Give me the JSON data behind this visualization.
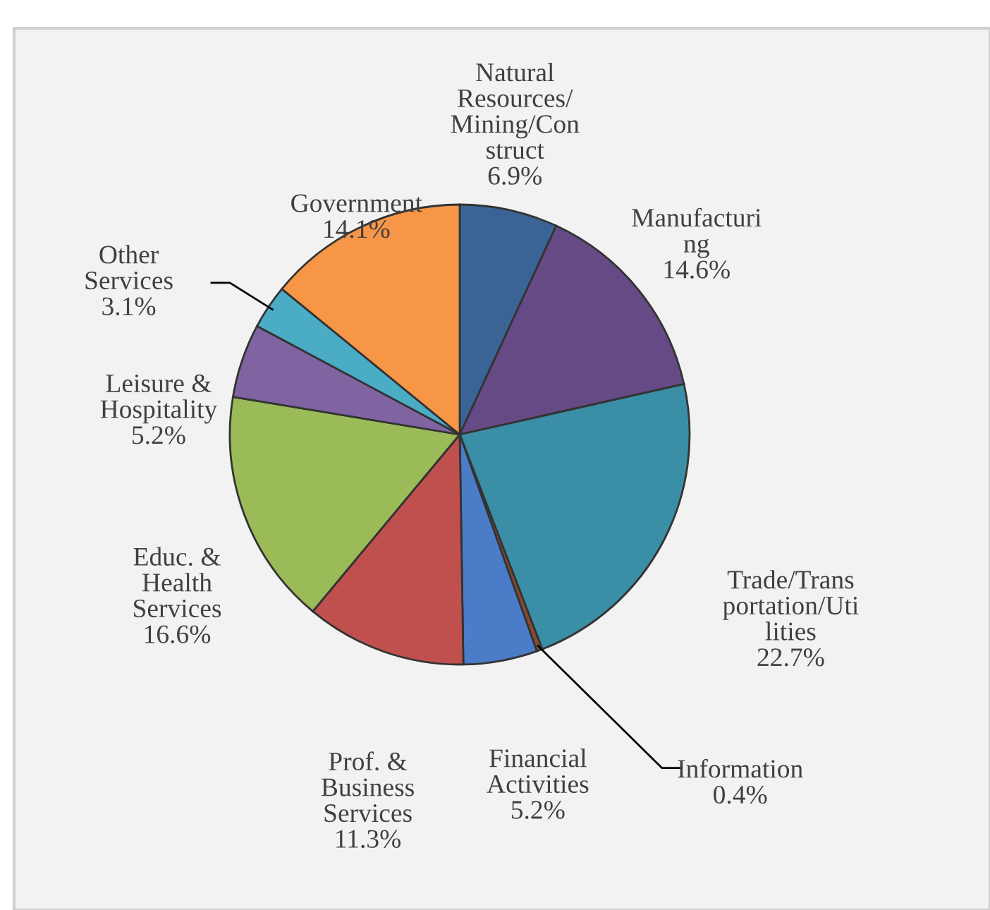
{
  "chart_data": {
    "type": "pie",
    "categories": [
      "Natural\nResources/\nMining/Con\nstruct",
      "Manufacturi\nng",
      "Trade/Trans\nportation/Uti\nlities",
      "Information",
      "Financial\nActivities",
      "Prof. &\nBusiness\nServices",
      "Educ. &\nHealth\nServices",
      "Leisure &\nHospitality",
      "Other\nServices",
      "Government"
    ],
    "values": [
      6.9,
      14.6,
      22.7,
      0.4,
      5.2,
      11.3,
      16.6,
      5.2,
      3.1,
      14.1
    ],
    "colors": [
      "#3b6496",
      "#654a85",
      "#3a8ea5",
      "#8a4a2e",
      "#4a7cc8",
      "#c0504d",
      "#9bbb59",
      "#8064a2",
      "#4bacc6",
      "#f79646"
    ],
    "value_labels": [
      "6.9%",
      "14.6%",
      "22.7%",
      "0.4%",
      "5.2%",
      "11.3%",
      "16.6%",
      "5.2%",
      "3.1%",
      "14.1%"
    ]
  }
}
